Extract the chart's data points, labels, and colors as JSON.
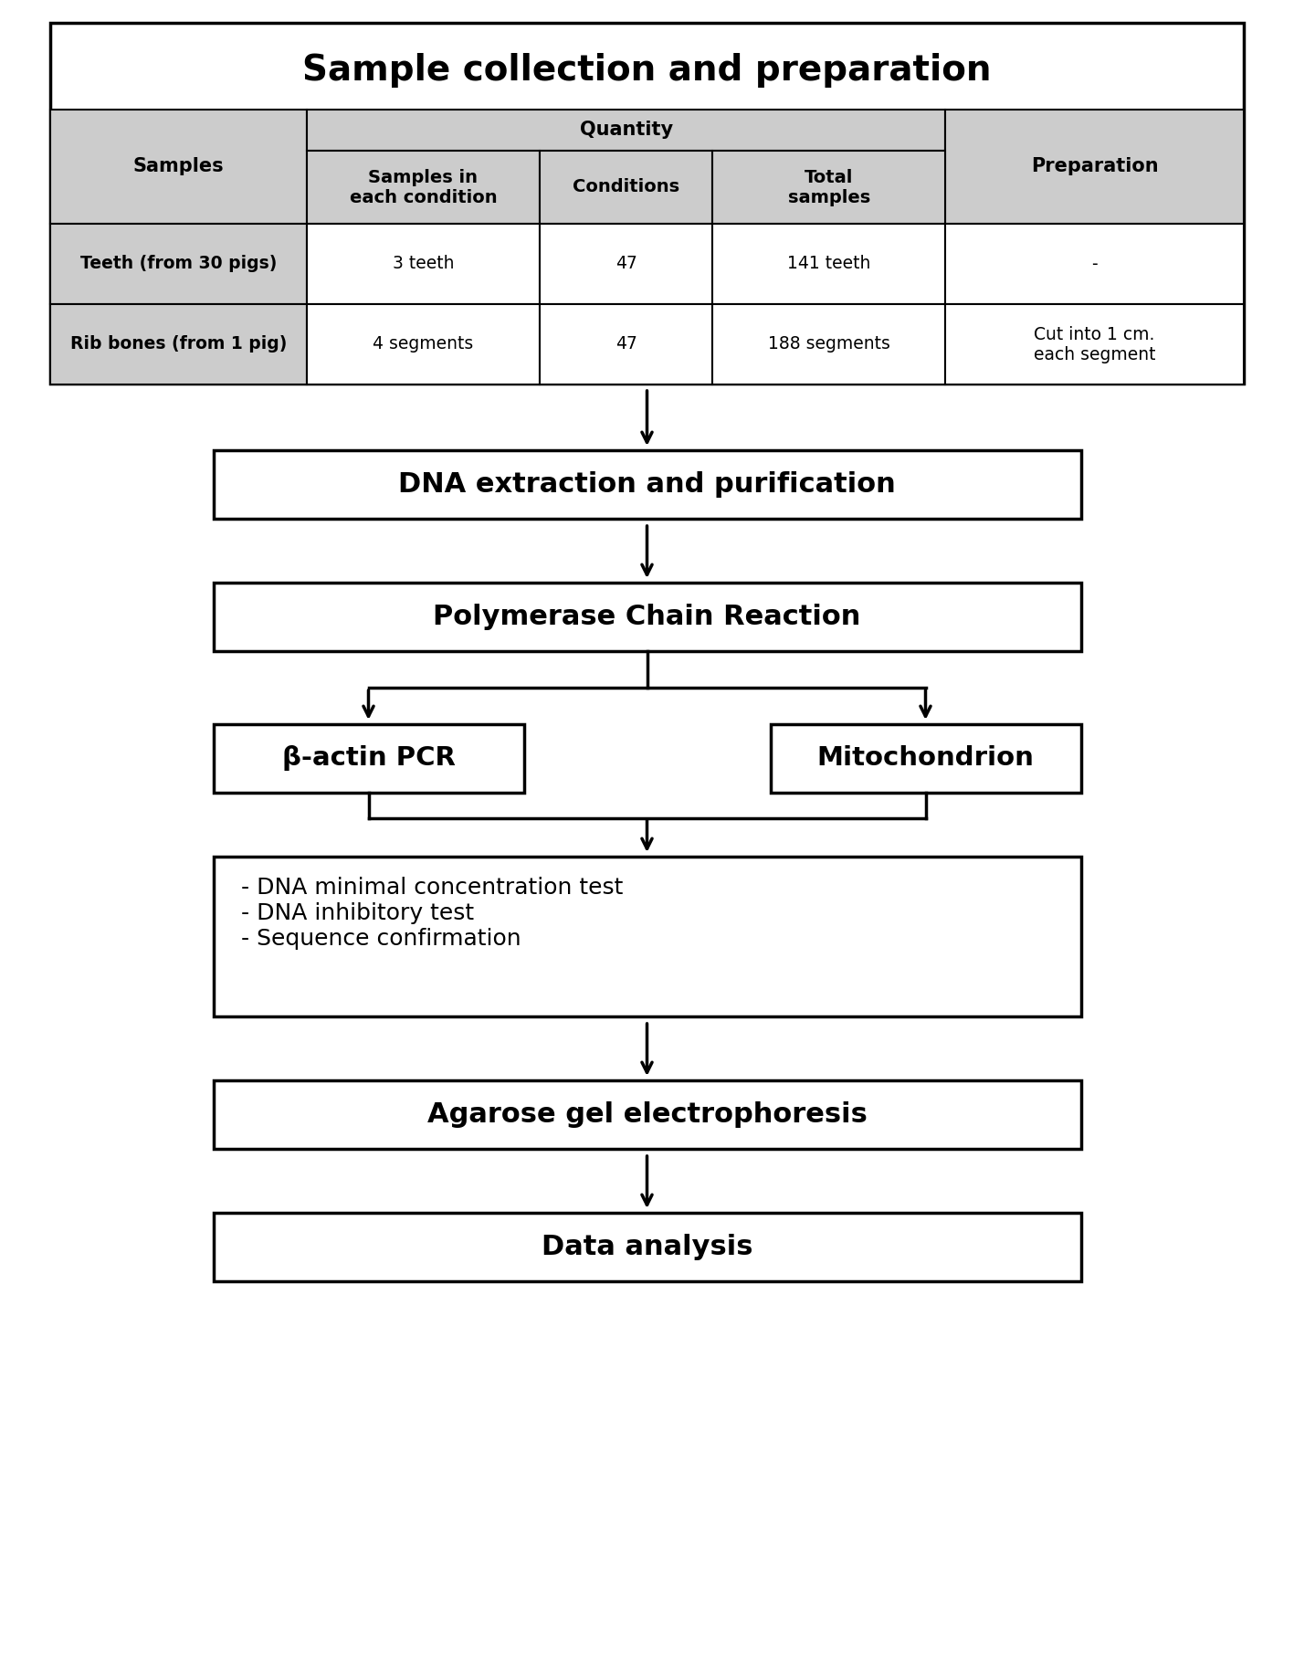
{
  "bg_color": "#ffffff",
  "title": "Sample collection and preparation",
  "header_bg": "#cccccc",
  "table": {
    "col_labels": [
      "Samples",
      "Samples in\neach condition",
      "Conditions",
      "Total\nsamples",
      "Preparation"
    ],
    "row1": [
      "Teeth (from 30 pigs)",
      "3 teeth",
      "47",
      "141 teeth",
      "-"
    ],
    "row2": [
      "Rib bones (from 1 pig)",
      "4 segments",
      "47",
      "188 segments",
      "Cut into 1 cm.\neach segment"
    ]
  },
  "flow_boxes": [
    {
      "label": "DNA extraction and purification",
      "type": "center"
    },
    {
      "label": "Polymerase Chain Reaction",
      "type": "center"
    },
    {
      "label": "β-actin PCR",
      "type": "center"
    },
    {
      "label": "Mitochondrion",
      "type": "center"
    },
    {
      "label": "- DNA minimal concentration test\n- DNA inhibitory test\n- Sequence confirmation",
      "type": "left"
    },
    {
      "label": "Agarose gel electrophoresis",
      "type": "center"
    },
    {
      "label": "Data analysis",
      "type": "center"
    }
  ]
}
